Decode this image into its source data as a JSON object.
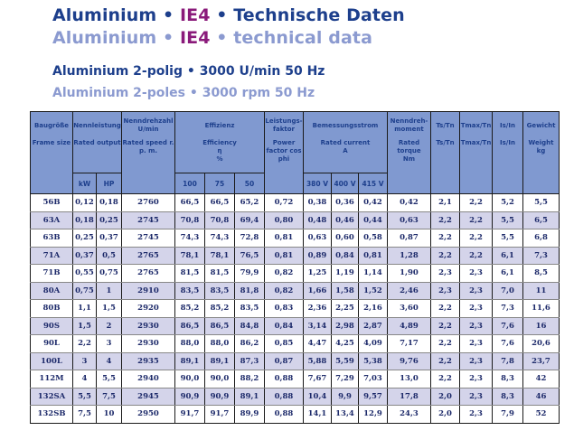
{
  "heading": {
    "de": {
      "prefix": "Aluminium • ",
      "accent": "IE4",
      "suffix": " • Technische Daten"
    },
    "en": {
      "prefix": "Aluminium • ",
      "accent": "IE4",
      "suffix": " • technical data"
    }
  },
  "subheading": {
    "de": "Aluminium 2-polig • 3000 U/min 50 Hz",
    "en": "Aluminium 2-poles • 3000 rpm 50 Hz"
  },
  "colors": {
    "title_dark": "#1d3f8c",
    "title_light": "#8b9ad0",
    "accent": "#8a1a7a",
    "header_bg": "#8099d0",
    "row_alt_bg": "#d4d4ea"
  },
  "table": {
    "headers": {
      "frame": {
        "de": "Baugröße",
        "en": "Frame size"
      },
      "output": {
        "de": "Nennleistung",
        "en": "Rated output",
        "kw": "kW",
        "hp": "HP"
      },
      "speed": {
        "de": "Nenndrehzahl U/min",
        "en": "Rated speed r. p. m."
      },
      "eff": {
        "de": "Effizienz",
        "en": "Efficiency",
        "sym": "η",
        "unit": "%",
        "c100": "100",
        "c75": "75",
        "c50": "50"
      },
      "pf": {
        "de": "Leistungs-faktor",
        "en": "Power factor cos phi"
      },
      "current": {
        "de": "Bemessungsstrom",
        "en": "Rated current",
        "unit": "A",
        "v380": "380 V",
        "v400": "400 V",
        "v415": "415 V"
      },
      "torque": {
        "de": "Nenndreh-moment",
        "en": "Rated torque",
        "unit": "Nm"
      },
      "tstn": {
        "de": "Ts/Tn",
        "en": "Ts/Tn"
      },
      "tmax": {
        "de": "Tmax/Tn",
        "en": "Tmax/Tn"
      },
      "isin": {
        "de": "Is/In",
        "en": "Is/In"
      },
      "weight": {
        "de": "Gewicht",
        "en": "Weight",
        "unit": "kg"
      }
    },
    "rows": [
      [
        "56B",
        "0,12",
        "0,18",
        "2760",
        "66,5",
        "66,5",
        "65,2",
        "0,72",
        "0,38",
        "0,36",
        "0,42",
        "0,42",
        "2,1",
        "2,2",
        "5,2",
        "5,5"
      ],
      [
        "63A",
        "0,18",
        "0,25",
        "2745",
        "70,8",
        "70,8",
        "69,4",
        "0,80",
        "0,48",
        "0,46",
        "0,44",
        "0,63",
        "2,2",
        "2,2",
        "5,5",
        "6,5"
      ],
      [
        "63B",
        "0,25",
        "0,37",
        "2745",
        "74,3",
        "74,3",
        "72,8",
        "0,81",
        "0,63",
        "0,60",
        "0,58",
        "0,87",
        "2,2",
        "2,2",
        "5,5",
        "6,8"
      ],
      [
        "71A",
        "0,37",
        "0,5",
        "2765",
        "78,1",
        "78,1",
        "76,5",
        "0,81",
        "0,89",
        "0,84",
        "0,81",
        "1,28",
        "2,2",
        "2,2",
        "6,1",
        "7,3"
      ],
      [
        "71B",
        "0,55",
        "0,75",
        "2765",
        "81,5",
        "81,5",
        "79,9",
        "0,82",
        "1,25",
        "1,19",
        "1,14",
        "1,90",
        "2,3",
        "2,3",
        "6,1",
        "8,5"
      ],
      [
        "80A",
        "0,75",
        "1",
        "2910",
        "83,5",
        "83,5",
        "81,8",
        "0,82",
        "1,66",
        "1,58",
        "1,52",
        "2,46",
        "2,3",
        "2,3",
        "7,0",
        "11"
      ],
      [
        "80B",
        "1,1",
        "1,5",
        "2920",
        "85,2",
        "85,2",
        "83,5",
        "0,83",
        "2,36",
        "2,25",
        "2,16",
        "3,60",
        "2,2",
        "2,3",
        "7,3",
        "11,6"
      ],
      [
        "90S",
        "1,5",
        "2",
        "2930",
        "86,5",
        "86,5",
        "84,8",
        "0,84",
        "3,14",
        "2,98",
        "2,87",
        "4,89",
        "2,2",
        "2,3",
        "7,6",
        "16"
      ],
      [
        "90L",
        "2,2",
        "3",
        "2930",
        "88,0",
        "88,0",
        "86,2",
        "0,85",
        "4,47",
        "4,25",
        "4,09",
        "7,17",
        "2,2",
        "2,3",
        "7,6",
        "20,6"
      ],
      [
        "100L",
        "3",
        "4",
        "2935",
        "89,1",
        "89,1",
        "87,3",
        "0,87",
        "5,88",
        "5,59",
        "5,38",
        "9,76",
        "2,2",
        "2,3",
        "7,8",
        "23,7"
      ],
      [
        "112M",
        "4",
        "5,5",
        "2940",
        "90,0",
        "90,0",
        "88,2",
        "0,88",
        "7,67",
        "7,29",
        "7,03",
        "13,0",
        "2,2",
        "2,3",
        "8,3",
        "42"
      ],
      [
        "132SA",
        "5,5",
        "7,5",
        "2945",
        "90,9",
        "90,9",
        "89,1",
        "0,88",
        "10,4",
        "9,9",
        "9,57",
        "17,8",
        "2,0",
        "2,3",
        "8,3",
        "46"
      ],
      [
        "132SB",
        "7,5",
        "10",
        "2950",
        "91,7",
        "91,7",
        "89,9",
        "0,88",
        "14,1",
        "13,4",
        "12,9",
        "24,3",
        "2,0",
        "2,3",
        "7,9",
        "52"
      ]
    ]
  }
}
